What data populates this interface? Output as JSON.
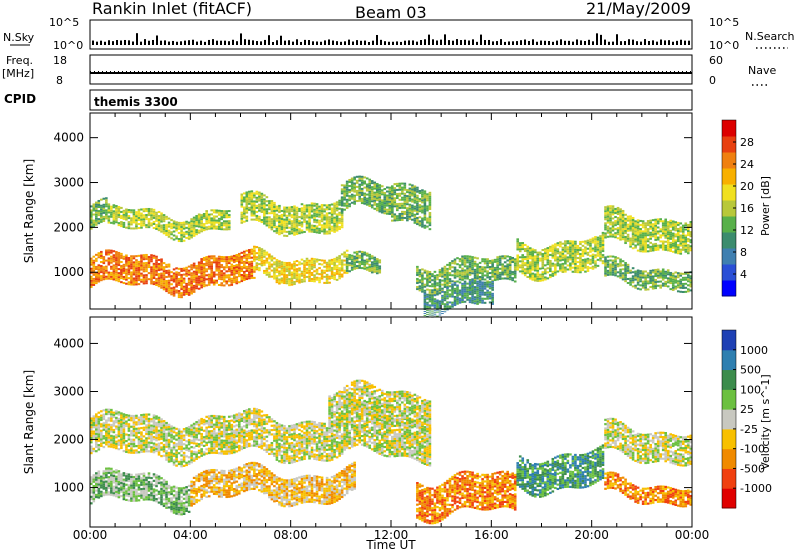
{
  "header": {
    "station": "Rankin Inlet (fitACF)",
    "beam": "Beam 03",
    "date": "21/May/2009"
  },
  "noise_panel": {
    "left_label": "N.Sky",
    "left_ticks": [
      "10^5",
      "10^0"
    ],
    "right_label": "N.Search",
    "right_ticks": [
      "10^5",
      "10^0"
    ]
  },
  "freq_panel": {
    "left_label_1": "Freq.",
    "left_label_2": "[MHz]",
    "left_ticks": [
      "18",
      "8"
    ],
    "right_label": "Nave",
    "right_ticks": [
      "60",
      "0"
    ],
    "freq_value_mhz": 11.8
  },
  "cpid_panel": {
    "label": "CPID",
    "mode": "themis 3300"
  },
  "chart_data": [
    {
      "type": "heatmap",
      "parameter": "Power",
      "ylabel": "Slant Range [km]",
      "xlabel": "Time UT",
      "x_ticks": [
        "00:00",
        "04:00",
        "08:00",
        "12:00",
        "16:00",
        "20:00",
        "00:00"
      ],
      "xlim_hours": [
        0,
        24
      ],
      "y_ticks": [
        1000,
        2000,
        3000,
        4000
      ],
      "ylim_km": [
        180,
        4550
      ],
      "colorbar": {
        "label": "Power [dB]",
        "ticks": [
          "4",
          "8",
          "12",
          "16",
          "20",
          "24",
          "28"
        ],
        "colors": [
          "#0000ff",
          "#2a4fd6",
          "#3f7fb0",
          "#3c8c6e",
          "#58b04a",
          "#b8c83a",
          "#f0e020",
          "#f8b000",
          "#f08010",
          "#e84010",
          "#dc0000"
        ]
      },
      "bands": [
        {
          "t_start": 0.0,
          "t_end": 0.7,
          "r_start": 1950,
          "r_end": 2450,
          "level": 4
        },
        {
          "t_start": 0.7,
          "t_end": 5.5,
          "r_start": 1900,
          "r_end": 2350,
          "level": 5
        },
        {
          "t_start": 6.0,
          "t_end": 10.0,
          "r_start": 1950,
          "r_end": 2600,
          "level": 5
        },
        {
          "t_start": 10.0,
          "t_end": 12.0,
          "r_start": 2300,
          "r_end": 2900,
          "level": 4
        },
        {
          "t_start": 12.0,
          "t_end": 13.5,
          "r_start": 2150,
          "r_end": 3000,
          "level": 4
        },
        {
          "t_start": 0.0,
          "t_end": 6.5,
          "r_start": 650,
          "r_end": 1300,
          "level": 8
        },
        {
          "t_start": 6.5,
          "t_end": 10.2,
          "r_start": 850,
          "r_end": 1350,
          "level": 6
        },
        {
          "t_start": 10.2,
          "t_end": 11.5,
          "r_start": 850,
          "r_end": 1250,
          "level": 4
        },
        {
          "t_start": 13.0,
          "t_end": 17.0,
          "r_start": 700,
          "r_end": 1200,
          "level": 4
        },
        {
          "t_start": 17.0,
          "t_end": 20.5,
          "r_start": 1000,
          "r_end": 1700,
          "level": 5
        },
        {
          "t_start": 20.5,
          "t_end": 24.0,
          "r_start": 700,
          "r_end": 1150,
          "level": 4
        },
        {
          "t_start": 20.5,
          "t_end": 24.0,
          "r_start": 1550,
          "r_end": 2250,
          "level": 5
        },
        {
          "t_start": 13.3,
          "t_end": 16.0,
          "r_start": 180,
          "r_end": 700,
          "level": 3
        }
      ]
    },
    {
      "type": "heatmap",
      "parameter": "Velocity",
      "ylabel": "Slant Range [km]",
      "xlabel": "Time UT",
      "x_ticks": [
        "00:00",
        "04:00",
        "08:00",
        "12:00",
        "16:00",
        "20:00",
        "00:00"
      ],
      "xlim_hours": [
        0,
        24
      ],
      "y_ticks": [
        1000,
        2000,
        3000,
        4000
      ],
      "ylim_km": [
        180,
        4550
      ],
      "colorbar": {
        "label": "Velocity [m s^-1]",
        "ticks": [
          "1000",
          "500",
          "100",
          "25",
          "-25",
          "-100",
          "-500",
          "-1000"
        ],
        "colors": [
          "#1e40b4",
          "#2e7fb0",
          "#3c8c4c",
          "#6cc040",
          "#c8c8c0",
          "#f8c000",
          "#f08a00",
          "#f04010",
          "#e00000"
        ]
      },
      "bands": [
        {
          "t_start": 0.0,
          "t_end": 13.5,
          "r_start": 1650,
          "r_end": 2450,
          "level": 4
        },
        {
          "t_start": 9.5,
          "t_end": 13.5,
          "r_start": 2350,
          "r_end": 3000,
          "level": 4
        },
        {
          "t_start": 0.0,
          "t_end": 4.0,
          "r_start": 650,
          "r_end": 1200,
          "level": 3
        },
        {
          "t_start": 4.0,
          "t_end": 10.5,
          "r_start": 750,
          "r_end": 1300,
          "level": 5
        },
        {
          "t_start": 13.0,
          "t_end": 17.0,
          "r_start": 450,
          "r_end": 1200,
          "level": 6
        },
        {
          "t_start": 17.0,
          "t_end": 20.5,
          "r_start": 1000,
          "r_end": 1700,
          "level": 2
        },
        {
          "t_start": 20.5,
          "t_end": 24.0,
          "r_start": 750,
          "r_end": 1100,
          "level": 6
        },
        {
          "t_start": 20.5,
          "t_end": 24.0,
          "r_start": 1600,
          "r_end": 2200,
          "level": 4
        }
      ]
    }
  ]
}
